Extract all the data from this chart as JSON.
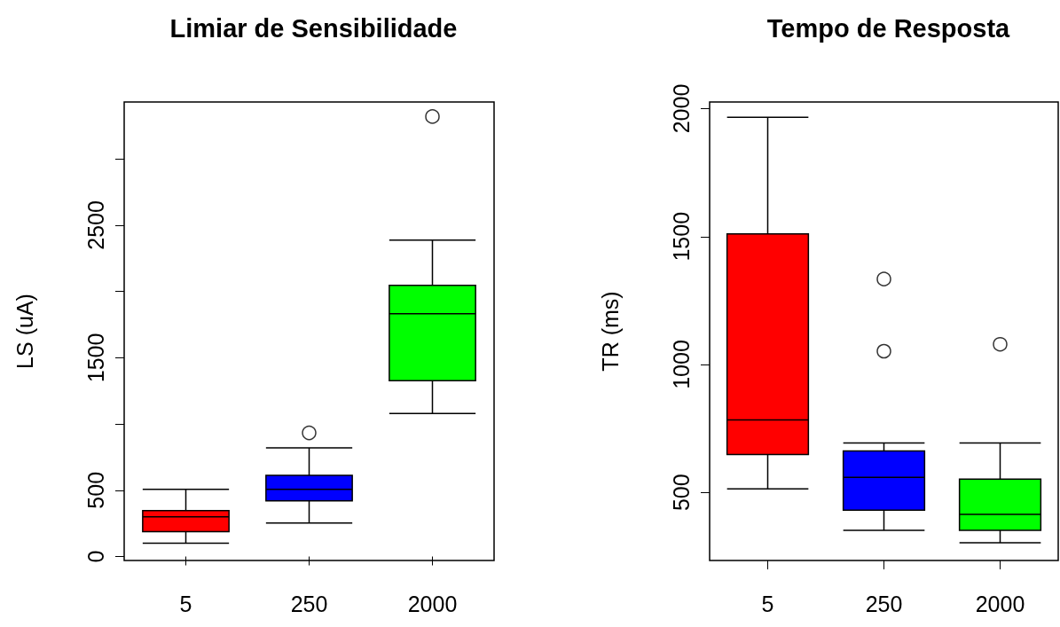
{
  "chart_data": [
    {
      "type": "box",
      "title": "Limiar de Sensibilidade",
      "ylabel": "LS (uA)",
      "categories": [
        "5",
        "250",
        "2000"
      ],
      "colors": [
        "#ff0000",
        "#0000ff",
        "#00ff00"
      ],
      "boxes": [
        {
          "low": 100,
          "q1": 187,
          "median": 300,
          "q3": 347,
          "high": 507
        },
        {
          "low": 253,
          "q1": 420,
          "median": 507,
          "q3": 613,
          "high": 820,
          "outliers": [
            933
          ]
        },
        {
          "low": 1080,
          "q1": 1327,
          "median": 1833,
          "q3": 2047,
          "high": 2387,
          "outliers": [
            3320
          ]
        }
      ],
      "ylim": [
        -30,
        3430
      ],
      "yticks": [
        0,
        500,
        {
          "value": 1000,
          "label": null
        },
        1500,
        {
          "value": 2000,
          "label": null
        },
        2500,
        {
          "value": 3000,
          "label": null
        }
      ],
      "grid": false
    },
    {
      "type": "box",
      "title": "Tempo de Resposta",
      "ylabel": "TR (ms)",
      "categories": [
        "5",
        "250",
        "2000"
      ],
      "colors": [
        "#ff0000",
        "#0000ff",
        "#00ff00"
      ],
      "boxes": [
        {
          "low": 514,
          "q1": 648,
          "median": 783,
          "q3": 1510,
          "high": 1966
        },
        {
          "low": 352,
          "q1": 431,
          "median": 559,
          "q3": 662,
          "high": 693,
          "outliers": [
            1052,
            1334
          ]
        },
        {
          "low": 303,
          "q1": 352,
          "median": 414,
          "q3": 552,
          "high": 693,
          "outliers": [
            1079
          ]
        }
      ],
      "ylim": [
        234,
        2026
      ],
      "yticks": [
        500,
        1000,
        1500,
        2000
      ],
      "grid": false
    }
  ]
}
